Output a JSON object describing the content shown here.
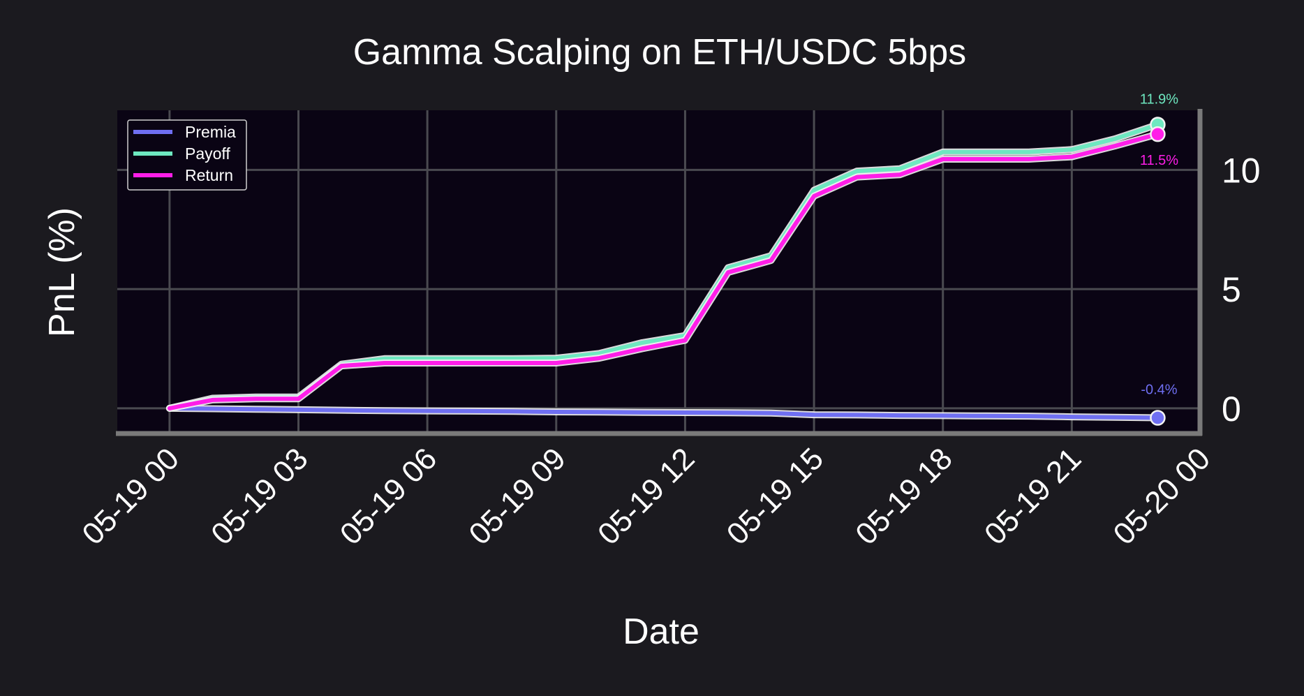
{
  "chart_data": {
    "type": "line",
    "title": "Gamma Scalping on ETH/USDC 5bps",
    "xlabel": "Date",
    "ylabel": "PnL (%)",
    "x_tick_labels": [
      "05-19 00",
      "05-19 03",
      "05-19 06",
      "05-19 09",
      "05-19 12",
      "05-19 15",
      "05-19 18",
      "05-19 21",
      "05-20 00"
    ],
    "y_ticks": [
      0,
      5,
      10
    ],
    "xlim": [
      "05-18 22:47",
      "05-20 00:00"
    ],
    "ylim": [
      -1,
      12.5
    ],
    "y_axis_side": "right",
    "grid": true,
    "legend_position": "top-left",
    "colors": {
      "background": "#1b1a1f",
      "plot_background": "#0a0414",
      "grid": "#4a4a50",
      "axis_line": "#7a7a7a"
    },
    "x": [
      "05-19 00:00",
      "05-19 01:00",
      "05-19 02:00",
      "05-19 03:00",
      "05-19 04:00",
      "05-19 05:00",
      "05-19 06:00",
      "05-19 07:00",
      "05-19 08:00",
      "05-19 09:00",
      "05-19 10:00",
      "05-19 11:00",
      "05-19 12:00",
      "05-19 13:00",
      "05-19 14:00",
      "05-19 15:00",
      "05-19 16:00",
      "05-19 17:00",
      "05-19 18:00",
      "05-19 19:00",
      "05-19 20:00",
      "05-19 21:00",
      "05-19 22:00",
      "05-19 23:00"
    ],
    "series": [
      {
        "name": "Premia",
        "color": "#6f6ff2",
        "values": [
          0,
          -0.02,
          -0.04,
          -0.06,
          -0.08,
          -0.1,
          -0.11,
          -0.12,
          -0.13,
          -0.15,
          -0.16,
          -0.17,
          -0.18,
          -0.19,
          -0.2,
          -0.27,
          -0.28,
          -0.3,
          -0.31,
          -0.32,
          -0.33,
          -0.36,
          -0.38,
          -0.4
        ],
        "end_label": "-0.4%"
      },
      {
        "name": "Payoff",
        "color": "#6ee8c0",
        "values": [
          0,
          0.42,
          0.47,
          0.47,
          1.85,
          2.08,
          2.08,
          2.08,
          2.08,
          2.1,
          2.3,
          2.75,
          3.05,
          5.9,
          6.4,
          9.15,
          9.95,
          10.05,
          10.75,
          10.75,
          10.75,
          10.85,
          11.3,
          11.9
        ],
        "end_label": "11.9%"
      },
      {
        "name": "Return",
        "color": "#ff1ee8",
        "values": [
          0,
          0.35,
          0.4,
          0.4,
          1.78,
          1.9,
          1.9,
          1.9,
          1.9,
          1.9,
          2.1,
          2.5,
          2.85,
          5.7,
          6.2,
          8.9,
          9.7,
          9.8,
          10.45,
          10.45,
          10.45,
          10.55,
          11.0,
          11.5
        ],
        "end_label": "11.5%"
      }
    ]
  }
}
